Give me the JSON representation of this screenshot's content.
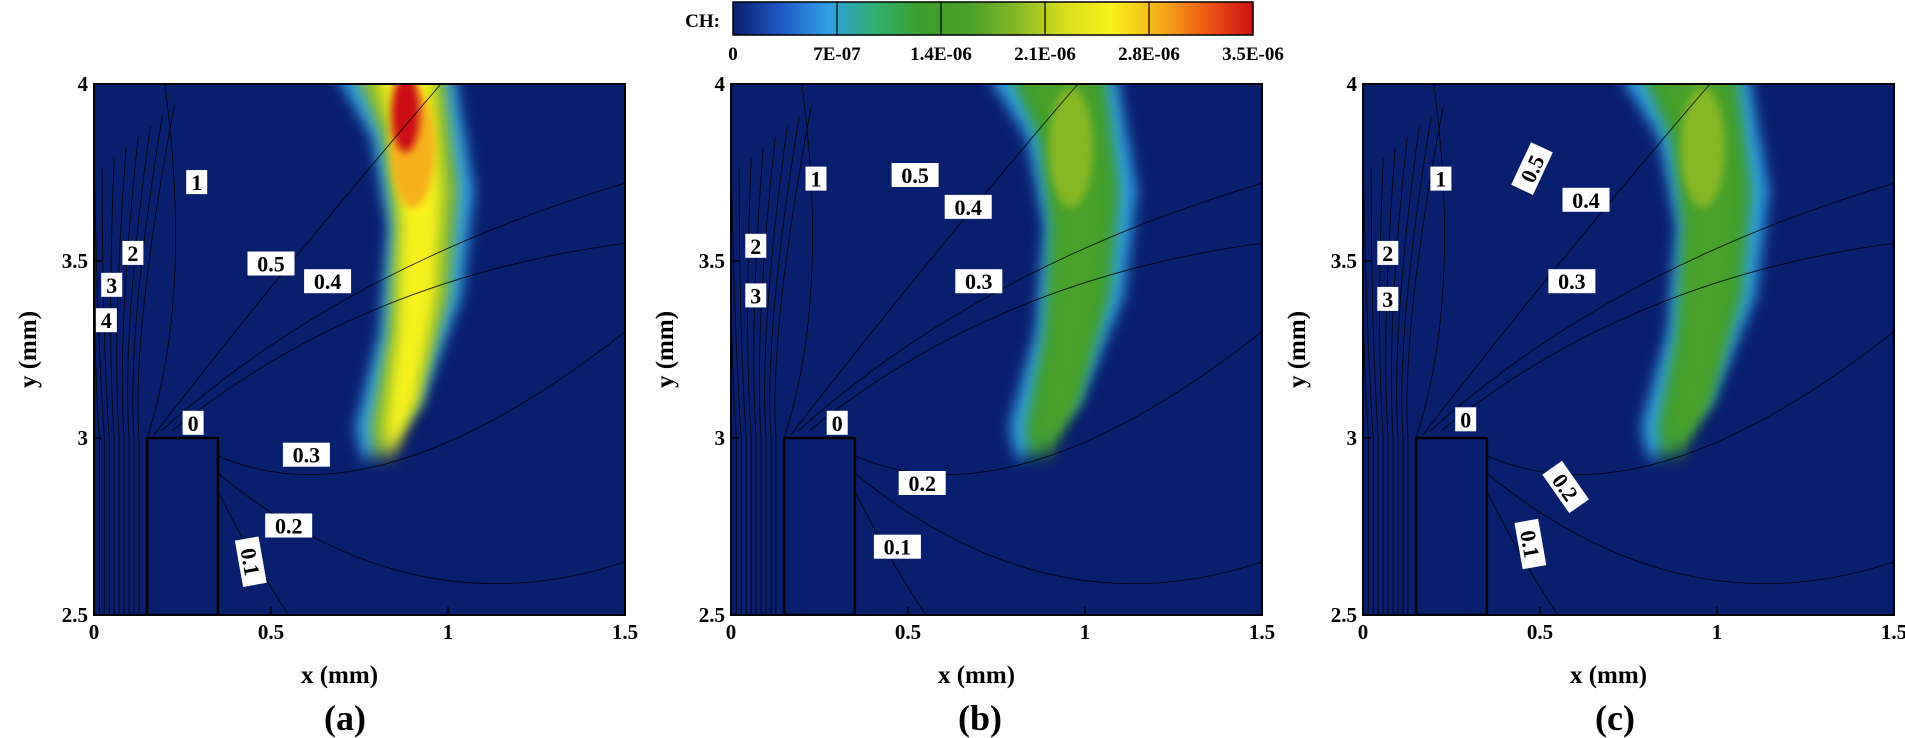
{
  "chart_data": {
    "type": "heatmap",
    "colorbar": {
      "title": "CH:",
      "min": 0,
      "max": 3.5e-06,
      "ticks": [
        0,
        7e-07,
        1.4e-06,
        2.1e-06,
        2.8e-06,
        3.5e-06
      ],
      "tick_labels": [
        "0",
        "7E-07",
        "1.4E-06",
        "2.1E-06",
        "2.8E-06",
        "3.5E-06"
      ],
      "colors": [
        "#0a1e6e",
        "#1f58c4",
        "#2f9fe4",
        "#2fb070",
        "#3c9d2a",
        "#49a02a",
        "#86b826",
        "#d7dc1d",
        "#f7f21a",
        "#f6b01a",
        "#ee5a14",
        "#cc1012"
      ]
    },
    "panels": [
      {
        "caption": "(a)",
        "xlabel": "x (mm)",
        "ylabel": "y (mm)",
        "xlim": [
          0,
          1.5
        ],
        "ylim": [
          2.5,
          4
        ],
        "xticks": [
          "0",
          "0.5",
          "1",
          "1.5"
        ],
        "yticks": [
          "2.5",
          "3",
          "3.5",
          "4"
        ],
        "flame_peak": 3.5e-06,
        "contour_labels": [
          {
            "text": "1",
            "x": 0.29,
            "y": 3.72,
            "angle": 0
          },
          {
            "text": "2",
            "x": 0.11,
            "y": 3.52,
            "angle": 0
          },
          {
            "text": "3",
            "x": 0.05,
            "y": 3.43,
            "angle": 0
          },
          {
            "text": "4",
            "x": 0.035,
            "y": 3.33,
            "angle": 0
          },
          {
            "text": "0.5",
            "x": 0.5,
            "y": 3.49,
            "angle": 0
          },
          {
            "text": "0.4",
            "x": 0.66,
            "y": 3.44,
            "angle": 0
          },
          {
            "text": "0.3",
            "x": 0.6,
            "y": 2.95,
            "angle": 0
          },
          {
            "text": "0.2",
            "x": 0.55,
            "y": 2.75,
            "angle": 0
          },
          {
            "text": "0",
            "x": 0.28,
            "y": 3.04,
            "angle": 0
          },
          {
            "text": "0.1",
            "x": 0.44,
            "y": 2.65,
            "angle": 80
          }
        ]
      },
      {
        "caption": "(b)",
        "xlabel": "x (mm)",
        "ylabel": "y (mm)",
        "xlim": [
          0,
          1.5
        ],
        "ylim": [
          2.5,
          4
        ],
        "xticks": [
          "0",
          "0.5",
          "1",
          "1.5"
        ],
        "yticks": [
          "2.5",
          "3",
          "3.5",
          "4"
        ],
        "flame_peak": 2.3e-06,
        "contour_labels": [
          {
            "text": "1",
            "x": 0.24,
            "y": 3.73,
            "angle": 0
          },
          {
            "text": "2",
            "x": 0.07,
            "y": 3.54,
            "angle": 0
          },
          {
            "text": "3",
            "x": 0.07,
            "y": 3.4,
            "angle": 0
          },
          {
            "text": "0.5",
            "x": 0.52,
            "y": 3.74,
            "angle": 0
          },
          {
            "text": "0.4",
            "x": 0.67,
            "y": 3.65,
            "angle": 0
          },
          {
            "text": "0.3",
            "x": 0.7,
            "y": 3.44,
            "angle": 0
          },
          {
            "text": "0.2",
            "x": 0.54,
            "y": 2.87,
            "angle": 0
          },
          {
            "text": "0.1",
            "x": 0.47,
            "y": 2.69,
            "angle": 0
          },
          {
            "text": "0",
            "x": 0.3,
            "y": 3.04,
            "angle": 0
          }
        ]
      },
      {
        "caption": "(c)",
        "xlabel": "x (mm)",
        "ylabel": "y (mm)",
        "xlim": [
          0,
          1.5
        ],
        "ylim": [
          2.5,
          4
        ],
        "xticks": [
          "0",
          "0.5",
          "1",
          "1.5"
        ],
        "yticks": [
          "2.5",
          "3",
          "3.5",
          "4"
        ],
        "flame_peak": 2.2e-06,
        "contour_labels": [
          {
            "text": "1",
            "x": 0.22,
            "y": 3.73,
            "angle": 0
          },
          {
            "text": "2",
            "x": 0.07,
            "y": 3.52,
            "angle": 0
          },
          {
            "text": "3",
            "x": 0.07,
            "y": 3.39,
            "angle": 0
          },
          {
            "text": "0.5",
            "x": 0.48,
            "y": 3.76,
            "angle": -65
          },
          {
            "text": "0.4",
            "x": 0.63,
            "y": 3.67,
            "angle": 0
          },
          {
            "text": "0.3",
            "x": 0.59,
            "y": 3.44,
            "angle": 0
          },
          {
            "text": "0.2",
            "x": 0.57,
            "y": 2.86,
            "angle": 55
          },
          {
            "text": "0.1",
            "x": 0.47,
            "y": 2.7,
            "angle": 80
          },
          {
            "text": "0",
            "x": 0.29,
            "y": 3.05,
            "angle": 0
          }
        ]
      }
    ]
  }
}
